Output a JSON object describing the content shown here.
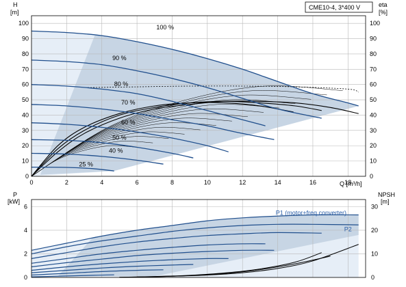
{
  "colors": {
    "blue": "#1f4e8c",
    "band_dark": "#c7d5e4",
    "band_light": "#e6eef7",
    "grid": "#b8b8b8",
    "black": "#000000",
    "label_blue": "#2a5ea8"
  },
  "chart_data": [
    {
      "id": "qh",
      "type": "line",
      "title": "CME10-4, 3*400 V",
      "ylabel_left": "H",
      "yunit_left": "[m]",
      "ylabel_right": "eta",
      "yunit_right": "[%]",
      "xlabel": "Q [m³/h]",
      "xlim": [
        0,
        19
      ],
      "ylim": [
        0,
        105
      ],
      "xticks": [
        0,
        2,
        4,
        6,
        8,
        10,
        12,
        14,
        16,
        18
      ],
      "yticks": [
        0,
        10,
        20,
        30,
        40,
        50,
        60,
        70,
        80,
        90,
        100
      ],
      "yticks_right": [
        0,
        10,
        20,
        30,
        40,
        50,
        60,
        70,
        80,
        90,
        100
      ],
      "grid": true,
      "speed_curves": [
        {
          "label": "100 %",
          "label_at": [
            7.6,
            96
          ],
          "x": [
            0,
            2,
            4,
            6,
            8,
            10,
            12,
            14,
            16,
            18,
            18.6
          ],
          "y": [
            95,
            94,
            92,
            88,
            83,
            77,
            70,
            62,
            54,
            48,
            46
          ]
        },
        {
          "label": "90 %",
          "label_at": [
            5.0,
            76
          ],
          "x": [
            0,
            2,
            4,
            6,
            8,
            10,
            12,
            14,
            16.5
          ],
          "y": [
            76,
            75,
            73,
            69,
            64,
            58,
            51,
            44,
            38
          ]
        },
        {
          "label": "80 %",
          "label_at": [
            5.1,
            59
          ],
          "x": [
            0,
            2,
            4,
            6,
            8,
            10,
            12,
            13.3
          ],
          "y": [
            60,
            59,
            57,
            54,
            49,
            43,
            37,
            33
          ]
        },
        {
          "label": "70 %",
          "label_at": [
            5.5,
            47
          ],
          "x": [
            0,
            2,
            4,
            6,
            8,
            10,
            12,
            13.8
          ],
          "y": [
            47,
            46,
            44,
            41,
            37,
            33,
            28,
            24
          ]
        },
        {
          "label": "60 %",
          "label_at": [
            5.5,
            34
          ],
          "x": [
            0,
            2,
            4,
            6,
            8,
            10,
            11.2
          ],
          "y": [
            35,
            34,
            32,
            29,
            25,
            20,
            16
          ]
        },
        {
          "label": "50 %",
          "label_at": [
            5.0,
            24
          ],
          "x": [
            0,
            2,
            4,
            6,
            8,
            9.2
          ],
          "y": [
            24,
            23.5,
            22,
            19,
            15,
            12
          ]
        },
        {
          "label": "40 %",
          "label_at": [
            4.8,
            15.5
          ],
          "x": [
            0,
            2,
            4,
            6,
            7.5
          ],
          "y": [
            15,
            14.5,
            13,
            10.5,
            8
          ]
        },
        {
          "label": "25 %",
          "label_at": [
            3.1,
            6.5
          ],
          "x": [
            0,
            2,
            3.5,
            4.7
          ],
          "y": [
            6,
            5.8,
            5,
            3.5
          ]
        }
      ],
      "efficiency_curves": [
        {
          "x": [
            0,
            1.5,
            3,
            5,
            7,
            9,
            11,
            13,
            15,
            17,
            18.6
          ],
          "y": [
            0,
            16,
            28,
            38,
            44,
            47,
            49,
            49,
            48,
            45,
            41
          ]
        },
        {
          "x": [
            0,
            1.5,
            3,
            5,
            7,
            9,
            11,
            13,
            15,
            16.5
          ],
          "y": [
            0,
            18,
            30,
            40,
            45,
            48,
            49,
            48,
            46,
            43
          ]
        },
        {
          "x": [
            0,
            1.5,
            3,
            5,
            7,
            9,
            11,
            13,
            14.9
          ],
          "y": [
            0,
            20,
            32,
            41,
            46,
            48,
            48,
            46,
            42
          ]
        }
      ],
      "max_efficiency_curve": {
        "x": [
          3.2,
          6,
          9,
          12,
          15,
          18,
          18.6
        ],
        "y": [
          58,
          58.5,
          59,
          59,
          58.5,
          57,
          55
        ]
      }
    },
    {
      "id": "power",
      "type": "line",
      "ylabel_left": "P",
      "yunit_left": "[kW]",
      "ylabel_right": "NPSH",
      "yunit_right": "[m]",
      "xlim": [
        0,
        19
      ],
      "ylim": [
        0,
        6.6
      ],
      "yticks": [
        0,
        2,
        4,
        6
      ],
      "yticks_right": [
        0,
        10,
        20,
        30
      ],
      "ylim_right": [
        0,
        33
      ],
      "grid": true,
      "series_labels": [
        {
          "name": "P1 (motor+freq.converter)",
          "at": [
            15.9,
            5.3
          ]
        },
        {
          "name": "P2",
          "at": [
            18.0,
            3.9
          ]
        }
      ],
      "power_curves": [
        {
          "x": [
            0,
            2,
            4,
            6,
            8,
            10,
            12,
            14,
            16,
            18.6
          ],
          "y": [
            2.3,
            2.9,
            3.5,
            4.0,
            4.4,
            4.8,
            5.05,
            5.2,
            5.3,
            5.3
          ]
        },
        {
          "x": [
            0,
            2,
            4,
            6,
            8,
            10,
            12,
            14,
            16,
            18.6
          ],
          "y": [
            2.0,
            2.6,
            3.1,
            3.5,
            3.9,
            4.2,
            4.4,
            4.5,
            4.5,
            4.45
          ]
        },
        {
          "x": [
            0,
            2,
            4,
            6,
            8,
            10,
            12,
            14,
            16.5
          ],
          "y": [
            1.6,
            2.1,
            2.6,
            3.0,
            3.3,
            3.55,
            3.7,
            3.8,
            3.75
          ]
        },
        {
          "x": [
            0,
            2,
            4,
            6,
            8,
            10,
            12,
            13.3
          ],
          "y": [
            1.2,
            1.6,
            2.0,
            2.3,
            2.55,
            2.75,
            2.85,
            2.85
          ]
        },
        {
          "x": [
            0,
            2,
            4,
            6,
            8,
            10,
            12,
            13.8
          ],
          "y": [
            0.9,
            1.25,
            1.55,
            1.85,
            2.05,
            2.2,
            2.3,
            2.3
          ]
        },
        {
          "x": [
            0,
            2,
            4,
            6,
            8,
            10,
            11.2
          ],
          "y": [
            0.6,
            0.9,
            1.15,
            1.35,
            1.5,
            1.6,
            1.6
          ]
        },
        {
          "x": [
            0,
            2,
            4,
            6,
            8,
            9.2
          ],
          "y": [
            0.4,
            0.6,
            0.8,
            0.95,
            1.05,
            1.1
          ]
        },
        {
          "x": [
            0,
            2,
            4,
            6,
            7.5
          ],
          "y": [
            0.2,
            0.35,
            0.5,
            0.6,
            0.65
          ]
        },
        {
          "x": [
            0,
            2,
            3.5,
            4.7
          ],
          "y": [
            0.05,
            0.12,
            0.18,
            0.22
          ]
        }
      ],
      "npsh_curves": [
        {
          "x": [
            6,
            8,
            10,
            12,
            14,
            16,
            18.6
          ],
          "y": [
            0.2,
            0.5,
            1.0,
            2.0,
            3.8,
            7.0,
            14.0
          ]
        },
        {
          "x": [
            5,
            7,
            9,
            11,
            13,
            15,
            16.5
          ],
          "y": [
            0.1,
            0.4,
            0.9,
            1.9,
            3.6,
            6.5,
            10.5
          ]
        },
        {
          "x": [
            5,
            7,
            9,
            11,
            13,
            15,
            17
          ],
          "y": [
            0.1,
            0.3,
            0.8,
            1.7,
            3.3,
            5.8,
            9.0
          ]
        }
      ]
    }
  ]
}
